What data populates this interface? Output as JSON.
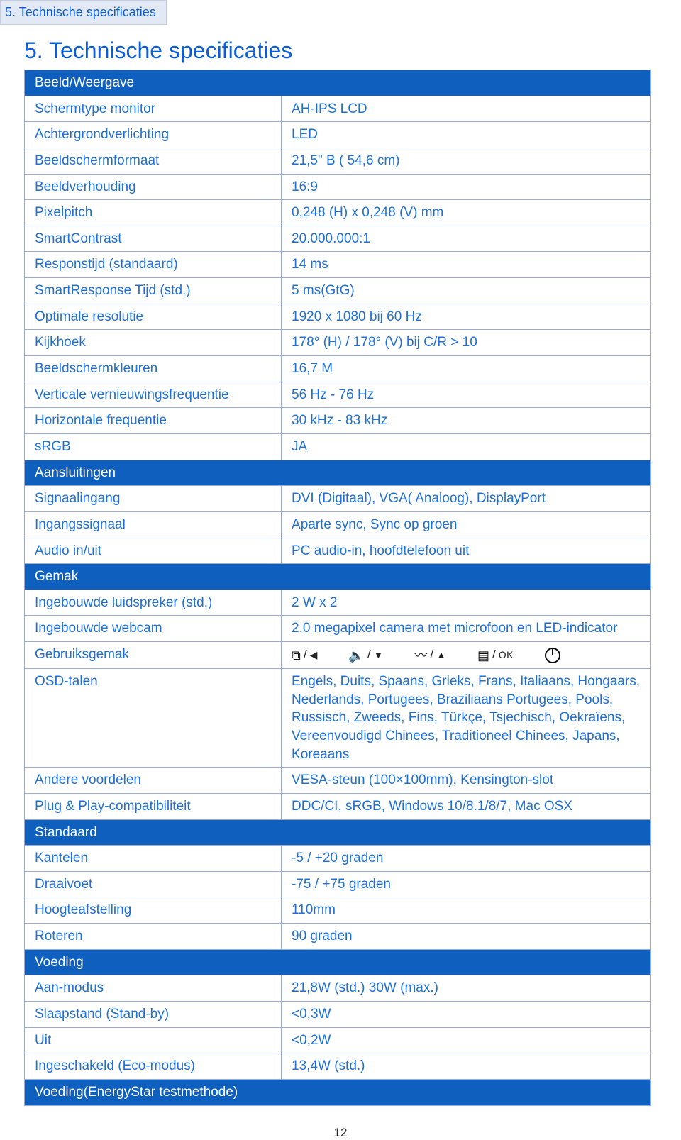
{
  "breadcrumb": "5. Technische specificaties",
  "title": "5. Technische specificaties",
  "sections": {
    "beeld": {
      "header": "Beeld/Weergave",
      "rows": [
        [
          "Schermtype monitor",
          "AH-IPS LCD"
        ],
        [
          "Achtergrondverlichting",
          "LED"
        ],
        [
          "Beeldschermformaat",
          "21,5\" B ( 54,6 cm)"
        ],
        [
          "Beeldverhouding",
          "16:9"
        ],
        [
          "Pixelpitch",
          "0,248 (H) x 0,248 (V) mm"
        ],
        [
          "SmartContrast",
          "20.000.000:1"
        ],
        [
          "Responstijd (standaard)",
          "14 ms"
        ],
        [
          "SmartResponse Tijd (std.)",
          "5 ms(GtG)"
        ],
        [
          "Optimale resolutie",
          "1920 x 1080 bij 60 Hz"
        ],
        [
          "Kijkhoek",
          "178° (H) / 178° (V) bij C/R > 10"
        ],
        [
          "Beeldschermkleuren",
          "16,7 M"
        ],
        [
          "Verticale vernieuwingsfrequentie",
          "56 Hz - 76 Hz"
        ],
        [
          "Horizontale frequentie",
          "30 kHz - 83 kHz"
        ],
        [
          "sRGB",
          "JA"
        ]
      ]
    },
    "aansluitingen": {
      "header": "Aansluitingen",
      "rows": [
        [
          "Signaalingang",
          "DVI (Digitaal), VGA( Analoog), DisplayPort"
        ],
        [
          "Ingangssignaal",
          "Aparte sync, Sync op groen"
        ],
        [
          "Audio in/uit",
          "PC audio-in, hoofdtelefoon uit"
        ]
      ]
    },
    "gemak": {
      "header": "Gemak",
      "rows": [
        [
          "Ingebouwde luidspreker  (std.)",
          "2 W x 2"
        ],
        [
          "Ingebouwde webcam",
          "2.0 megapixel camera met microfoon en LED-indicator"
        ]
      ],
      "gebruiksgemak_label": "Gebruiksgemak",
      "osd_rows": [
        [
          "OSD-talen",
          "Engels, Duits, Spaans, Grieks, Frans, Italiaans, Hongaars, Nederlands, Portugees, Braziliaans Portugees, Pools, Russisch, Zweeds, Fins, Türkçe, Tsjechisch, Oekraïens, Vereenvoudigd Chinees, Traditioneel Chinees, Japans, Koreaans"
        ],
        [
          "Andere voordelen",
          "VESA-steun (100×100mm), Kensington-slot"
        ],
        [
          "Plug & Play-compatibiliteit",
          "DDC/CI, sRGB, Windows 10/8.1/8/7, Mac OSX"
        ]
      ]
    },
    "standaard": {
      "header": "Standaard",
      "rows": [
        [
          "Kantelen",
          "-5 / +20 graden"
        ],
        [
          "Draaivoet",
          "-75 / +75 graden"
        ],
        [
          "Hoogteafstelling",
          "110mm"
        ],
        [
          "Roteren",
          "90 graden"
        ]
      ]
    },
    "voeding": {
      "header": "Voeding",
      "rows": [
        [
          "Aan-modus",
          "21,8W (std.) 30W (max.)"
        ],
        [
          "Slaapstand (Stand-by)",
          "<0,3W"
        ],
        [
          "Uit",
          "<0,2W"
        ],
        [
          "Ingeschakeld (Eco-modus)",
          "13,4W (std.)"
        ]
      ],
      "footer": "Voeding(EnergyStar testmethode)"
    }
  },
  "icons": {
    "ok": "OK"
  },
  "page_number": "12",
  "colors": {
    "brand_blue": "#0b5ed7",
    "header_bg": "#0f5fbf",
    "border": "#9aaad2",
    "breadcrumb_bg": "#e3e9f4"
  }
}
